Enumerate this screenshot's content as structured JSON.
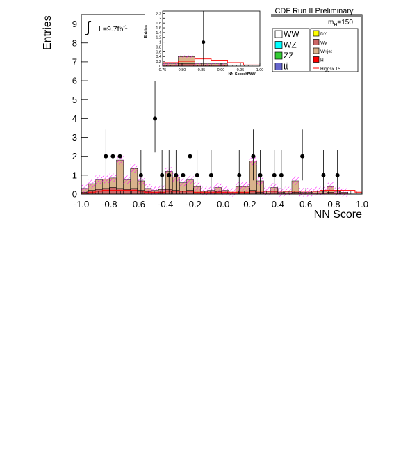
{
  "header": {
    "experiment_label": "CDF Run II Preliminary"
  },
  "annotations": {
    "luminosity": "L=9.7fb",
    "luminosity_exponent": "-1",
    "mass_label": "m",
    "mass_subscript": "H",
    "mass_value": "=150"
  },
  "legend": {
    "placement": "top-right",
    "left_entries": [
      {
        "label": "WW",
        "color": "#ffffff"
      },
      {
        "label": "WZ",
        "color": "#00ffff"
      },
      {
        "label": "ZZ",
        "color": "#33cc33"
      },
      {
        "label": "tt̄",
        "color": "#6666cc"
      }
    ],
    "right_entries": [
      {
        "label": "DY",
        "color": "#ffff00"
      },
      {
        "label": "Wγ",
        "color": "#cc6666"
      },
      {
        "label": "W+jet",
        "color": "#d9b38c"
      },
      {
        "label": "H",
        "color": "#ff0000"
      },
      {
        "label": "Higgsx 15",
        "color": "#ff0000",
        "style": "line"
      }
    ]
  },
  "colors": {
    "wjet": "#d9b38c",
    "wgamma": "#cc6666",
    "higgs": "#ff0000",
    "uncertainty_hatch": "#ff00ff",
    "data": "#000000"
  },
  "chart_data": [
    {
      "type": "bar",
      "chart": "main",
      "xlabel": "NN Score",
      "ylabel": "Entries",
      "xlim": [
        -1.0,
        1.0
      ],
      "ylim": [
        0,
        9.5
      ],
      "xticks": [
        "-1.0",
        "-0.8",
        "-0.6",
        "-0.4",
        "-0.2",
        "-0.0",
        "0.2",
        "0.4",
        "0.6",
        "0.8",
        "1.0"
      ],
      "yticks": [
        "0",
        "1",
        "2",
        "3",
        "4",
        "5",
        "6",
        "7",
        "8",
        "9"
      ],
      "bin_edges": [
        -1.0,
        -0.95,
        -0.9,
        -0.85,
        -0.8,
        -0.75,
        -0.7,
        -0.65,
        -0.6,
        -0.55,
        -0.5,
        -0.45,
        -0.4,
        -0.35,
        -0.3,
        -0.25,
        -0.2,
        -0.15,
        -0.1,
        -0.05,
        0.0,
        0.05,
        0.1,
        0.15,
        0.2,
        0.25,
        0.3,
        0.35,
        0.4,
        0.45,
        0.5,
        0.55,
        0.6,
        0.65,
        0.7,
        0.75,
        0.8,
        0.85,
        0.9,
        0.95,
        1.0
      ],
      "stack": [
        {
          "name": "Wγ",
          "color": "#cc6666",
          "values": [
            0.1,
            0.2,
            0.25,
            0.3,
            0.35,
            0.3,
            0.25,
            0.3,
            0.2,
            0.15,
            0.1,
            0.1,
            0.25,
            0.2,
            0.15,
            0.2,
            0.1,
            0.05,
            0.05,
            0.15,
            0.1,
            0.05,
            0.1,
            0.1,
            0.2,
            0.1,
            0.05,
            0.15,
            0.05,
            0.05,
            0.1,
            0.05,
            0.05,
            0.05,
            0.05,
            0.1,
            0.05,
            0.05,
            0.0,
            0.0
          ]
        },
        {
          "name": "W+jet",
          "color": "#d9b38c",
          "values": [
            0.2,
            0.35,
            0.5,
            0.5,
            0.5,
            1.5,
            0.5,
            1.05,
            0.5,
            0.15,
            0.1,
            0.15,
            0.95,
            0.7,
            0.45,
            0.55,
            0.3,
            0.1,
            0.15,
            0.2,
            0.1,
            0.05,
            0.3,
            0.3,
            1.55,
            0.6,
            0.1,
            0.2,
            0.05,
            0.1,
            0.6,
            0.05,
            0.05,
            0.1,
            0.1,
            0.3,
            0.1,
            0.05,
            0.0,
            0.0
          ]
        }
      ],
      "total_background": [
        0.3,
        0.55,
        0.75,
        0.8,
        0.85,
        1.8,
        0.75,
        1.35,
        0.7,
        0.3,
        0.2,
        0.25,
        1.2,
        0.9,
        0.6,
        0.75,
        0.4,
        0.15,
        0.2,
        0.35,
        0.2,
        0.1,
        0.4,
        0.4,
        1.75,
        0.7,
        0.15,
        0.35,
        0.1,
        0.15,
        0.7,
        0.1,
        0.1,
        0.15,
        0.15,
        0.4,
        0.15,
        0.1,
        0.0,
        0.0
      ],
      "higgs_x15": [
        0.05,
        0.1,
        0.15,
        0.2,
        0.2,
        0.2,
        0.2,
        0.2,
        0.15,
        0.1,
        0.1,
        0.1,
        0.15,
        0.15,
        0.15,
        0.15,
        0.1,
        0.1,
        0.1,
        0.1,
        0.1,
        0.1,
        0.1,
        0.1,
        0.15,
        0.15,
        0.15,
        0.15,
        0.15,
        0.15,
        0.15,
        0.15,
        0.15,
        0.15,
        0.2,
        0.2,
        0.2,
        0.2,
        0.2,
        0.1
      ],
      "data_points": [
        {
          "x": -0.825,
          "y": 2
        },
        {
          "x": -0.775,
          "y": 2
        },
        {
          "x": -0.725,
          "y": 2
        },
        {
          "x": -0.575,
          "y": 1
        },
        {
          "x": -0.475,
          "y": 4
        },
        {
          "x": -0.425,
          "y": 1
        },
        {
          "x": -0.375,
          "y": 1
        },
        {
          "x": -0.325,
          "y": 1
        },
        {
          "x": -0.275,
          "y": 1
        },
        {
          "x": -0.225,
          "y": 2
        },
        {
          "x": -0.175,
          "y": 1
        },
        {
          "x": -0.075,
          "y": 1
        },
        {
          "x": 0.125,
          "y": 1
        },
        {
          "x": 0.225,
          "y": 2
        },
        {
          "x": 0.275,
          "y": 1
        },
        {
          "x": 0.375,
          "y": 1
        },
        {
          "x": 0.425,
          "y": 1
        },
        {
          "x": 0.575,
          "y": 2
        },
        {
          "x": 0.725,
          "y": 1
        },
        {
          "x": 0.825,
          "y": 1
        }
      ]
    },
    {
      "type": "bar",
      "chart": "inset",
      "xlabel": "NN ScoreHWW",
      "ylabel": "Entries",
      "xlim": [
        0.75,
        1.0
      ],
      "ylim": [
        0,
        2.3
      ],
      "xticks": [
        "0.75",
        "0.80",
        "0.85",
        "0.90",
        "0.95",
        "1.00"
      ],
      "yticks": [
        "0",
        "0.2",
        "0.4",
        "0.6",
        "0.8",
        "1",
        "1.2",
        "1.4",
        "1.6",
        "1.8",
        "2",
        "2.2"
      ],
      "bin_edges": [
        0.75,
        0.79,
        0.833,
        0.875,
        0.917,
        0.958,
        1.0
      ],
      "stack": [
        {
          "name": "Wγ",
          "color": "#cc6666",
          "values": [
            0.05,
            0.1,
            0.05,
            0.05,
            0.0,
            0.0
          ]
        },
        {
          "name": "W+jet",
          "color": "#d9b38c",
          "values": [
            0.05,
            0.3,
            0.05,
            0.05,
            0.0,
            0.0
          ]
        }
      ],
      "total_background": [
        0.1,
        0.4,
        0.1,
        0.1,
        0.0,
        0.0
      ],
      "higgs_x15": [
        0.15,
        0.2,
        0.3,
        0.25,
        0.15,
        0.05
      ],
      "data_points": [
        {
          "x": 0.855,
          "y": 1
        }
      ]
    }
  ]
}
